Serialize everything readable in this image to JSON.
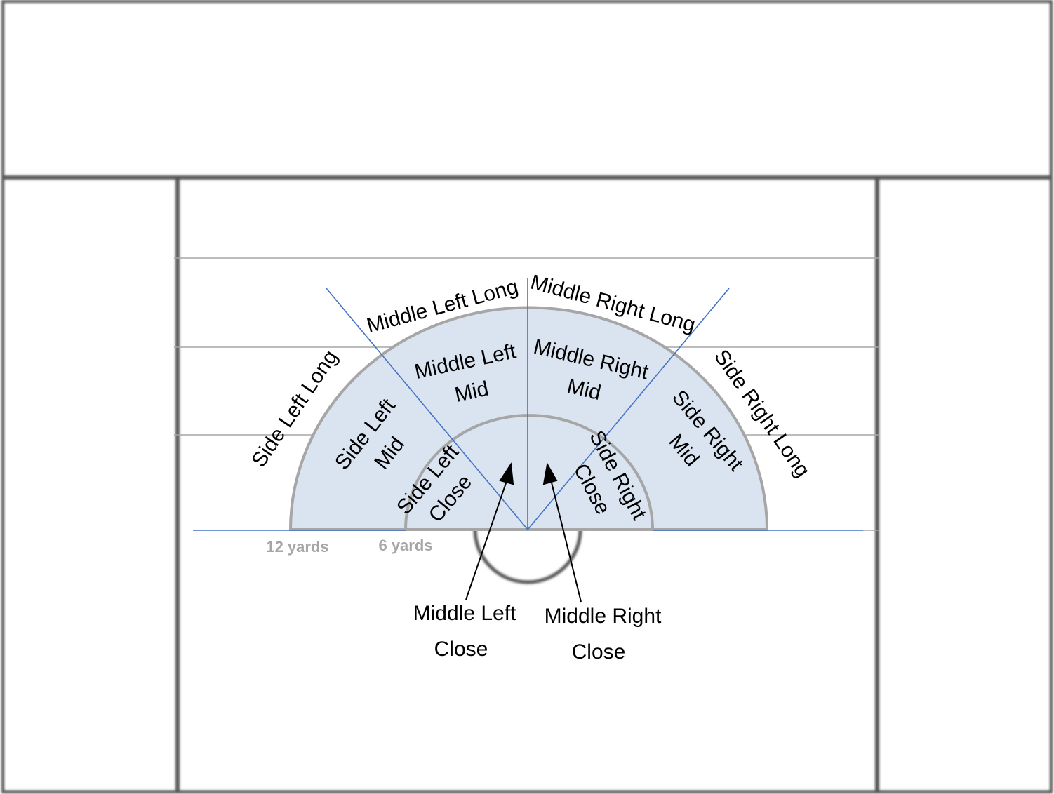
{
  "zones": {
    "outer": {
      "side_left_long": "Side Left Long",
      "middle_left_long": "Middle Left Long",
      "middle_right_long": "Middle Right Long",
      "side_right_long": "Side Right Long"
    },
    "mid": {
      "side_left_mid": [
        "Side Left",
        "Mid"
      ],
      "middle_left_mid": [
        "Middle Left",
        "Mid"
      ],
      "middle_right_mid": [
        "Middle Right",
        "Mid"
      ],
      "side_right_mid": [
        "Side Right",
        "Mid"
      ]
    },
    "close": {
      "side_left_close": [
        "Side Left",
        "Close"
      ],
      "side_right_close": [
        "Side Right",
        "Close"
      ]
    }
  },
  "callouts": {
    "middle_left_close": [
      "Middle Left",
      "Close"
    ],
    "middle_right_close": [
      "Middle Right",
      "Close"
    ]
  },
  "distances": {
    "outer": "12 yards",
    "inner": "6 yards"
  },
  "colors": {
    "fan_fill": "#dae3f0",
    "arc_stroke": "#a6a6a6",
    "zone_lines": "#4472c4",
    "field_lines": "#a6a6a6",
    "field_border": "#7f7f7f"
  }
}
